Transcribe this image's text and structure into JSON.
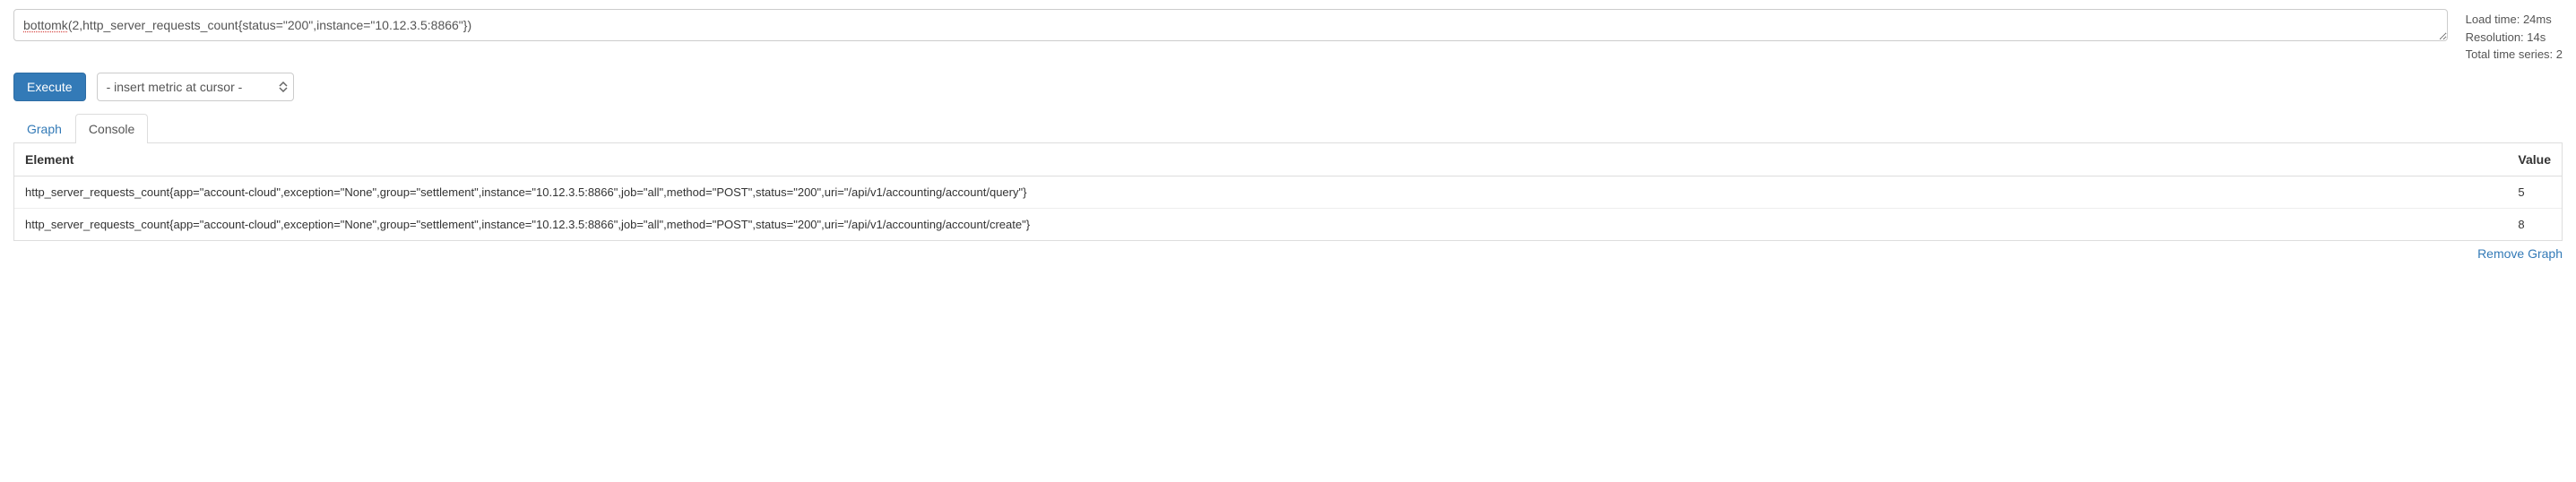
{
  "query": {
    "text_parts": [
      {
        "t": "bottomk",
        "spell": true
      },
      {
        "t": "(2,http_server_requests_count{status=\"200\",instance=\"10.12.3.5:8866\"})",
        "spell": false
      }
    ]
  },
  "stats": {
    "load_time": "Load time: 24ms",
    "resolution": "Resolution: 14s",
    "total_series": "Total time series: 2"
  },
  "controls": {
    "execute_label": "Execute",
    "metric_select_label": "- insert metric at cursor -"
  },
  "tabs": {
    "graph": "Graph",
    "console": "Console",
    "active": "console"
  },
  "results": {
    "columns": {
      "element": "Element",
      "value": "Value"
    },
    "rows": [
      {
        "element": "http_server_requests_count{app=\"account-cloud\",exception=\"None\",group=\"settlement\",instance=\"10.12.3.5:8866\",job=\"all\",method=\"POST\",status=\"200\",uri=\"/api/v1/accounting/account/query\"}",
        "value": "5"
      },
      {
        "element": "http_server_requests_count{app=\"account-cloud\",exception=\"None\",group=\"settlement\",instance=\"10.12.3.5:8866\",job=\"all\",method=\"POST\",status=\"200\",uri=\"/api/v1/accounting/account/create\"}",
        "value": "8"
      }
    ]
  },
  "footer": {
    "remove_graph": "Remove Graph"
  },
  "colors": {
    "primary": "#337ab7",
    "border": "#ddd",
    "text": "#333"
  }
}
